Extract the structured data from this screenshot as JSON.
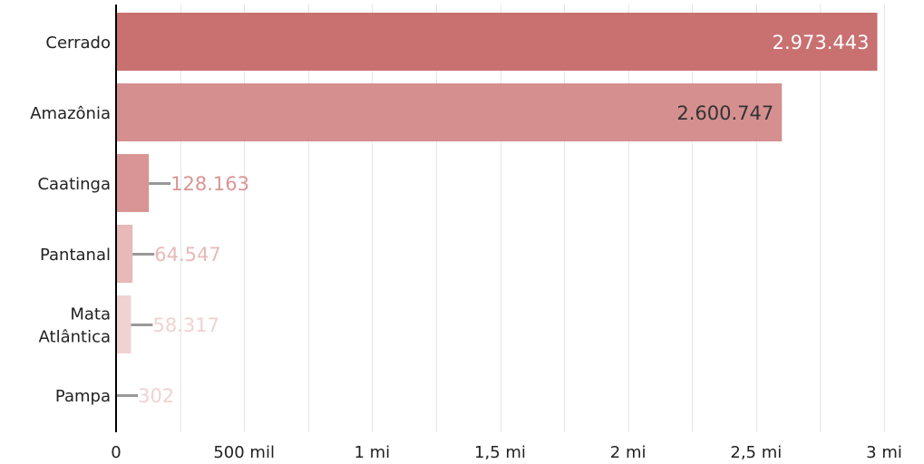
{
  "chart_data": {
    "type": "bar",
    "orientation": "horizontal",
    "title": "",
    "xlabel": "",
    "ylabel": "",
    "categories": [
      {
        "label_lines": [
          "Cerrado"
        ],
        "value": 2973443,
        "value_label": "2.973.443",
        "bar_color": "#c97070",
        "label_color": "#ffffff",
        "label_inside": true
      },
      {
        "label_lines": [
          "Amazônia"
        ],
        "value": 2600747,
        "value_label": "2.600.747",
        "bar_color": "#d68f8f",
        "label_color": "#333333",
        "label_inside": true
      },
      {
        "label_lines": [
          "Caatinga"
        ],
        "value": 128163,
        "value_label": "128.163",
        "bar_color": "#d99595",
        "label_color": "#d99595",
        "label_inside": false
      },
      {
        "label_lines": [
          "Pantanal"
        ],
        "value": 64547,
        "value_label": "64.547",
        "bar_color": "#e8b9b9",
        "label_color": "#e8b9b9",
        "label_inside": false
      },
      {
        "label_lines": [
          "Mata",
          "Atlântica"
        ],
        "value": 58317,
        "value_label": "58.317",
        "bar_color": "#f0d2d2",
        "label_color": "#f0d2d2",
        "label_inside": false
      },
      {
        "label_lines": [
          "Pampa"
        ],
        "value": 302,
        "value_label": "302",
        "bar_color": "#f5e3e3",
        "label_color": "#f0d2d2",
        "label_inside": false
      }
    ],
    "xlim": [
      0,
      3000000
    ],
    "ticks": [
      {
        "value": 0,
        "label": "0"
      },
      {
        "value": 500000,
        "label": "500 mil"
      },
      {
        "value": 1000000,
        "label": "1 mi"
      },
      {
        "value": 1500000,
        "label": "1,5 mi"
      },
      {
        "value": 2000000,
        "label": "2 mi"
      },
      {
        "value": 2500000,
        "label": "2,5 mi"
      },
      {
        "value": 3000000,
        "label": "3 mi"
      }
    ],
    "minor_grid_step": 250000,
    "grid": true,
    "leader_line_color": "#999999",
    "grid_color": "#e6e6e6",
    "axis_color": "#000000"
  }
}
